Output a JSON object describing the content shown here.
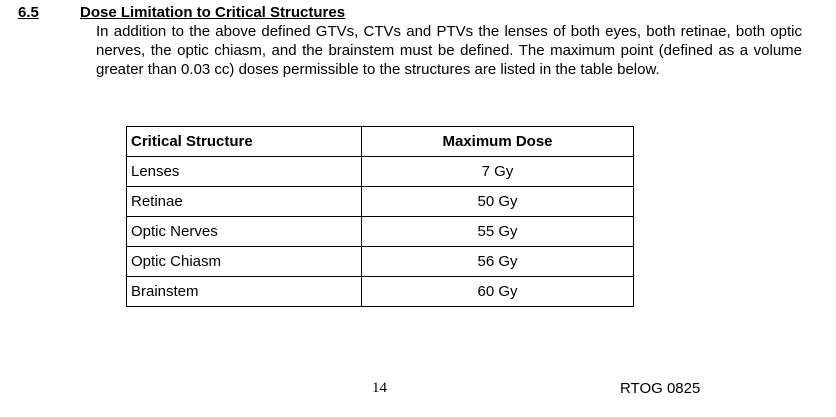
{
  "section": {
    "number": "6.5",
    "title": "Dose Limitation to Critical Structures",
    "paragraph": "In addition to the above defined GTVs, CTVs and PTVs the lenses of both eyes, both retinae, both optic nerves, the optic chiasm, and the brainstem must be defined. The maximum point (defined as a volume greater than 0.03 cc) doses permissible to the structures are listed in the table below."
  },
  "table": {
    "header": [
      "Critical Structure",
      "Maximum Dose"
    ],
    "rows": [
      [
        "Lenses",
        "7 Gy"
      ],
      [
        "Retinae",
        "50 Gy"
      ],
      [
        "Optic Nerves",
        "55 Gy"
      ],
      [
        "Optic Chiasm",
        "56 Gy"
      ],
      [
        "Brainstem",
        "60 Gy"
      ]
    ]
  },
  "footer": {
    "page": "14",
    "protocol": "RTOG 0825"
  }
}
